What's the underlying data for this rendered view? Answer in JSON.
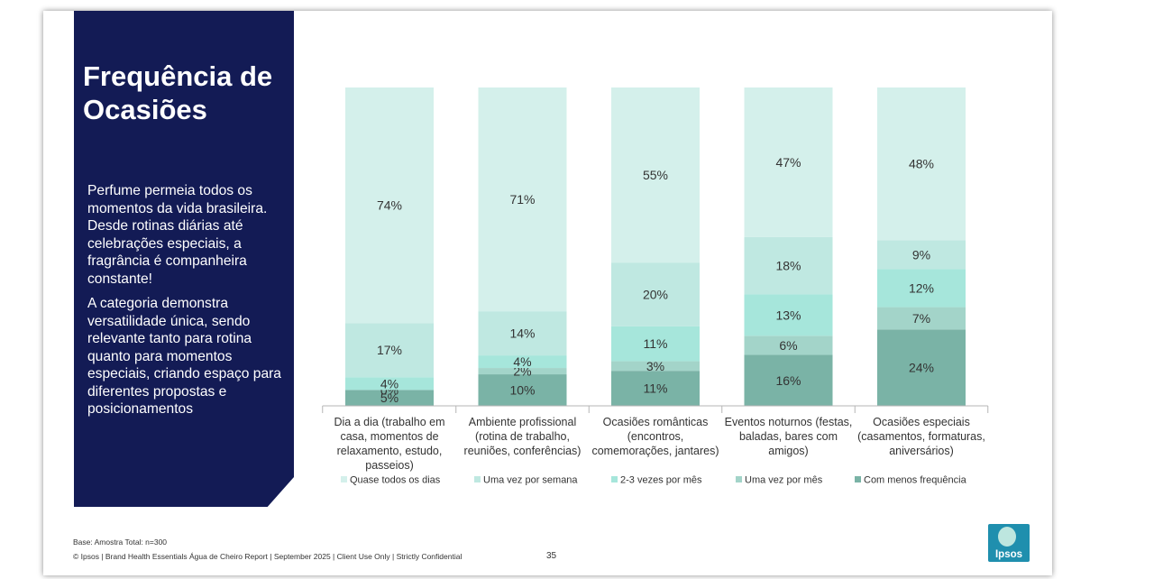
{
  "slide": {
    "title": "Frequência de\nOcasiões",
    "paragraph1": "Perfume permeia todos os momentos da vida brasileira. Desde rotinas diárias até celebrações especiais, a fragrância é companheira constante!",
    "paragraph2": "A categoria demonstra versatilidade única, sendo relevante tanto para rotina quanto para momentos especiais, criando espaço para diferentes propostas e posicionamentos",
    "base_note": "Base: Amostra Total: n=300",
    "footer": "© Ipsos | Brand Health Essentials Água de Cheiro Report | September 2025 | Client Use Only | Strictly Confidential",
    "page_number": "35",
    "logo_text": "Ipsos",
    "colors": {
      "panel": "#131b55",
      "logo": "#1f8fae"
    }
  },
  "chart_data": {
    "type": "bar",
    "stacked": true,
    "percent": true,
    "categories": [
      [
        "Dia a dia (trabalho em",
        "casa, momentos de",
        "relaxamento, estudo,",
        "passeios)"
      ],
      [
        "Ambiente profissional",
        "(rotina de trabalho,",
        "reuniões, conferências)"
      ],
      [
        "Ocasiões românticas",
        "(encontros,",
        "comemorações, jantares)"
      ],
      [
        "Eventos noturnos (festas,",
        "baladas, bares com",
        "amigos)"
      ],
      [
        "Ocasiões especiais",
        "(casamentos, formaturas,",
        "aniversários)"
      ]
    ],
    "series": [
      {
        "name": "Com menos frequência",
        "color": "#7ab3a6",
        "values": [
          5,
          10,
          11,
          16,
          24
        ]
      },
      {
        "name": "Uma vez por mês",
        "color": "#a3d4c9",
        "values": [
          0,
          2,
          3,
          6,
          7
        ]
      },
      {
        "name": "2-3 vezes por mês",
        "color": "#a6e6db",
        "values": [
          4,
          4,
          11,
          13,
          12
        ]
      },
      {
        "name": "Uma vez por semana",
        "color": "#bfe8e1",
        "values": [
          17,
          14,
          20,
          18,
          9
        ]
      },
      {
        "name": "Quase todos os dias",
        "color": "#d4f0eb",
        "values": [
          74,
          71,
          55,
          47,
          48
        ]
      }
    ],
    "data_labels": [
      [
        "5%",
        "0%",
        "4%",
        "17%",
        "74%"
      ],
      [
        "10%",
        "2%",
        "4%",
        "14%",
        "71%"
      ],
      [
        "11%",
        "3%",
        "11%",
        "20%",
        "55%"
      ],
      [
        "16%",
        "6%",
        "13%",
        "18%",
        "47%"
      ],
      [
        "24%",
        "7%",
        "12%",
        "9%",
        "48%"
      ]
    ],
    "legend_order": [
      "Quase todos os dias",
      "Uma vez por semana",
      "2-3 vezes por mês",
      "Uma vez por mês",
      "Com menos frequência"
    ],
    "legend_position": "bottom",
    "ylim": [
      0,
      100
    ],
    "grid": false
  }
}
